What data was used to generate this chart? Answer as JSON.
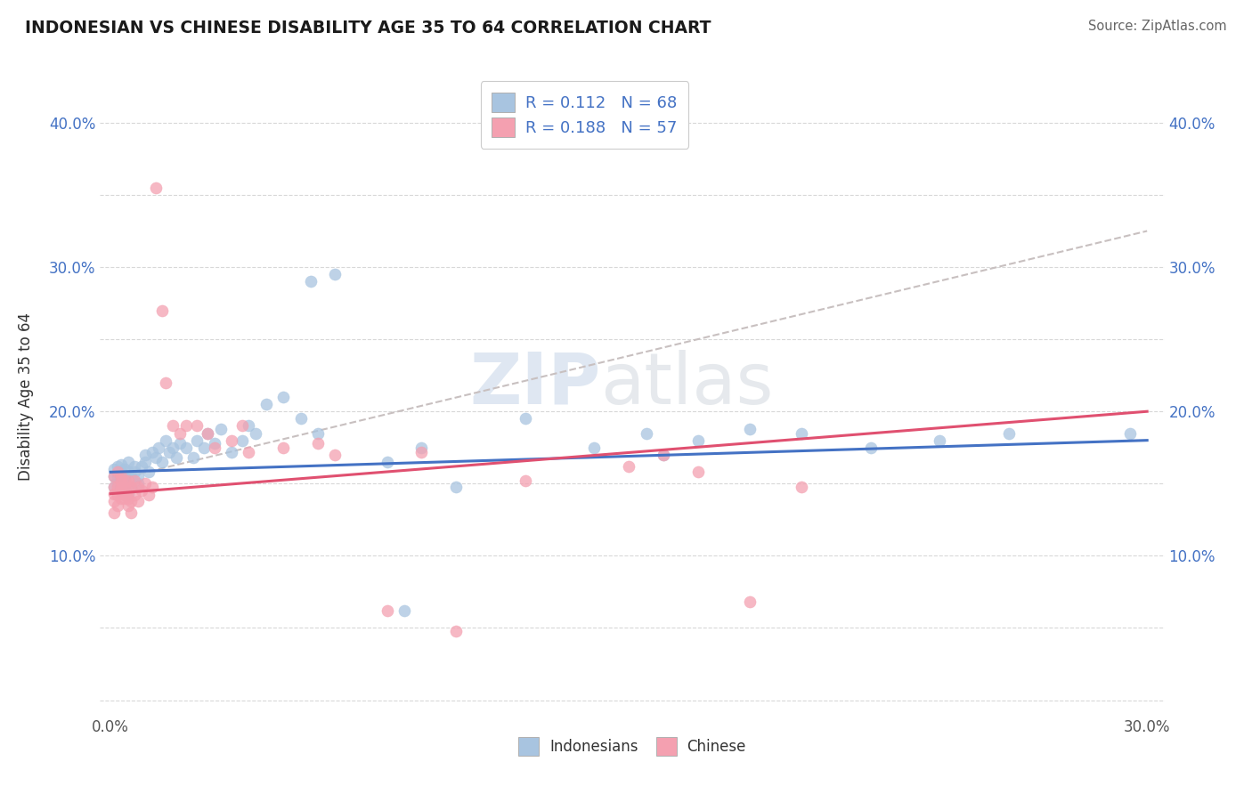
{
  "title": "INDONESIAN VS CHINESE DISABILITY AGE 35 TO 64 CORRELATION CHART",
  "source": "Source: ZipAtlas.com",
  "ylabel": "Disability Age 35 to 64",
  "xlim": [
    -0.003,
    0.305
  ],
  "ylim": [
    -0.01,
    0.43
  ],
  "xtick_positions": [
    0.0,
    0.05,
    0.1,
    0.15,
    0.2,
    0.25,
    0.3
  ],
  "ytick_positions": [
    0.0,
    0.05,
    0.1,
    0.15,
    0.2,
    0.25,
    0.3,
    0.35,
    0.4
  ],
  "R_indonesian": 0.112,
  "N_indonesian": 68,
  "R_chinese": 0.188,
  "N_chinese": 57,
  "indonesian_color": "#a8c4e0",
  "chinese_color": "#f4a0b0",
  "indonesian_line_color": "#4472c4",
  "chinese_line_color": "#e05070",
  "dashed_line_color": "#c8c0c0",
  "indonesian_x": [
    0.001,
    0.001,
    0.001,
    0.002,
    0.002,
    0.002,
    0.003,
    0.003,
    0.003,
    0.003,
    0.004,
    0.004,
    0.004,
    0.004,
    0.005,
    0.005,
    0.005,
    0.006,
    0.006,
    0.007,
    0.007,
    0.008,
    0.008,
    0.009,
    0.01,
    0.01,
    0.011,
    0.012,
    0.013,
    0.014,
    0.015,
    0.016,
    0.017,
    0.018,
    0.019,
    0.02,
    0.022,
    0.024,
    0.025,
    0.027,
    0.028,
    0.03,
    0.032,
    0.035,
    0.038,
    0.04,
    0.042,
    0.045,
    0.05,
    0.055,
    0.058,
    0.06,
    0.065,
    0.08,
    0.085,
    0.09,
    0.1,
    0.12,
    0.14,
    0.155,
    0.16,
    0.17,
    0.185,
    0.2,
    0.22,
    0.24,
    0.26,
    0.295
  ],
  "indonesian_y": [
    0.16,
    0.155,
    0.148,
    0.155,
    0.162,
    0.15,
    0.158,
    0.163,
    0.145,
    0.152,
    0.155,
    0.16,
    0.148,
    0.153,
    0.158,
    0.165,
    0.143,
    0.155,
    0.148,
    0.162,
    0.158,
    0.15,
    0.155,
    0.162,
    0.165,
    0.17,
    0.158,
    0.172,
    0.168,
    0.175,
    0.165,
    0.18,
    0.172,
    0.175,
    0.168,
    0.178,
    0.175,
    0.168,
    0.18,
    0.175,
    0.185,
    0.178,
    0.188,
    0.172,
    0.18,
    0.19,
    0.185,
    0.205,
    0.21,
    0.195,
    0.29,
    0.185,
    0.295,
    0.165,
    0.062,
    0.175,
    0.148,
    0.195,
    0.175,
    0.185,
    0.17,
    0.18,
    0.188,
    0.185,
    0.175,
    0.18,
    0.185,
    0.185
  ],
  "chinese_x": [
    0.001,
    0.001,
    0.001,
    0.001,
    0.001,
    0.002,
    0.002,
    0.002,
    0.002,
    0.003,
    0.003,
    0.003,
    0.003,
    0.003,
    0.004,
    0.004,
    0.004,
    0.004,
    0.005,
    0.005,
    0.005,
    0.005,
    0.006,
    0.006,
    0.006,
    0.007,
    0.007,
    0.008,
    0.008,
    0.009,
    0.01,
    0.011,
    0.012,
    0.013,
    0.015,
    0.016,
    0.018,
    0.02,
    0.022,
    0.025,
    0.028,
    0.03,
    0.035,
    0.038,
    0.04,
    0.05,
    0.06,
    0.065,
    0.08,
    0.09,
    0.1,
    0.12,
    0.15,
    0.16,
    0.17,
    0.185,
    0.2
  ],
  "chinese_y": [
    0.155,
    0.148,
    0.143,
    0.138,
    0.13,
    0.158,
    0.148,
    0.142,
    0.135,
    0.145,
    0.155,
    0.148,
    0.14,
    0.152,
    0.148,
    0.142,
    0.152,
    0.14,
    0.145,
    0.152,
    0.14,
    0.135,
    0.148,
    0.138,
    0.13,
    0.152,
    0.142,
    0.148,
    0.138,
    0.145,
    0.15,
    0.142,
    0.148,
    0.355,
    0.27,
    0.22,
    0.19,
    0.185,
    0.19,
    0.19,
    0.185,
    0.175,
    0.18,
    0.19,
    0.172,
    0.175,
    0.178,
    0.17,
    0.062,
    0.172,
    0.048,
    0.152,
    0.162,
    0.17,
    0.158,
    0.068,
    0.148
  ]
}
